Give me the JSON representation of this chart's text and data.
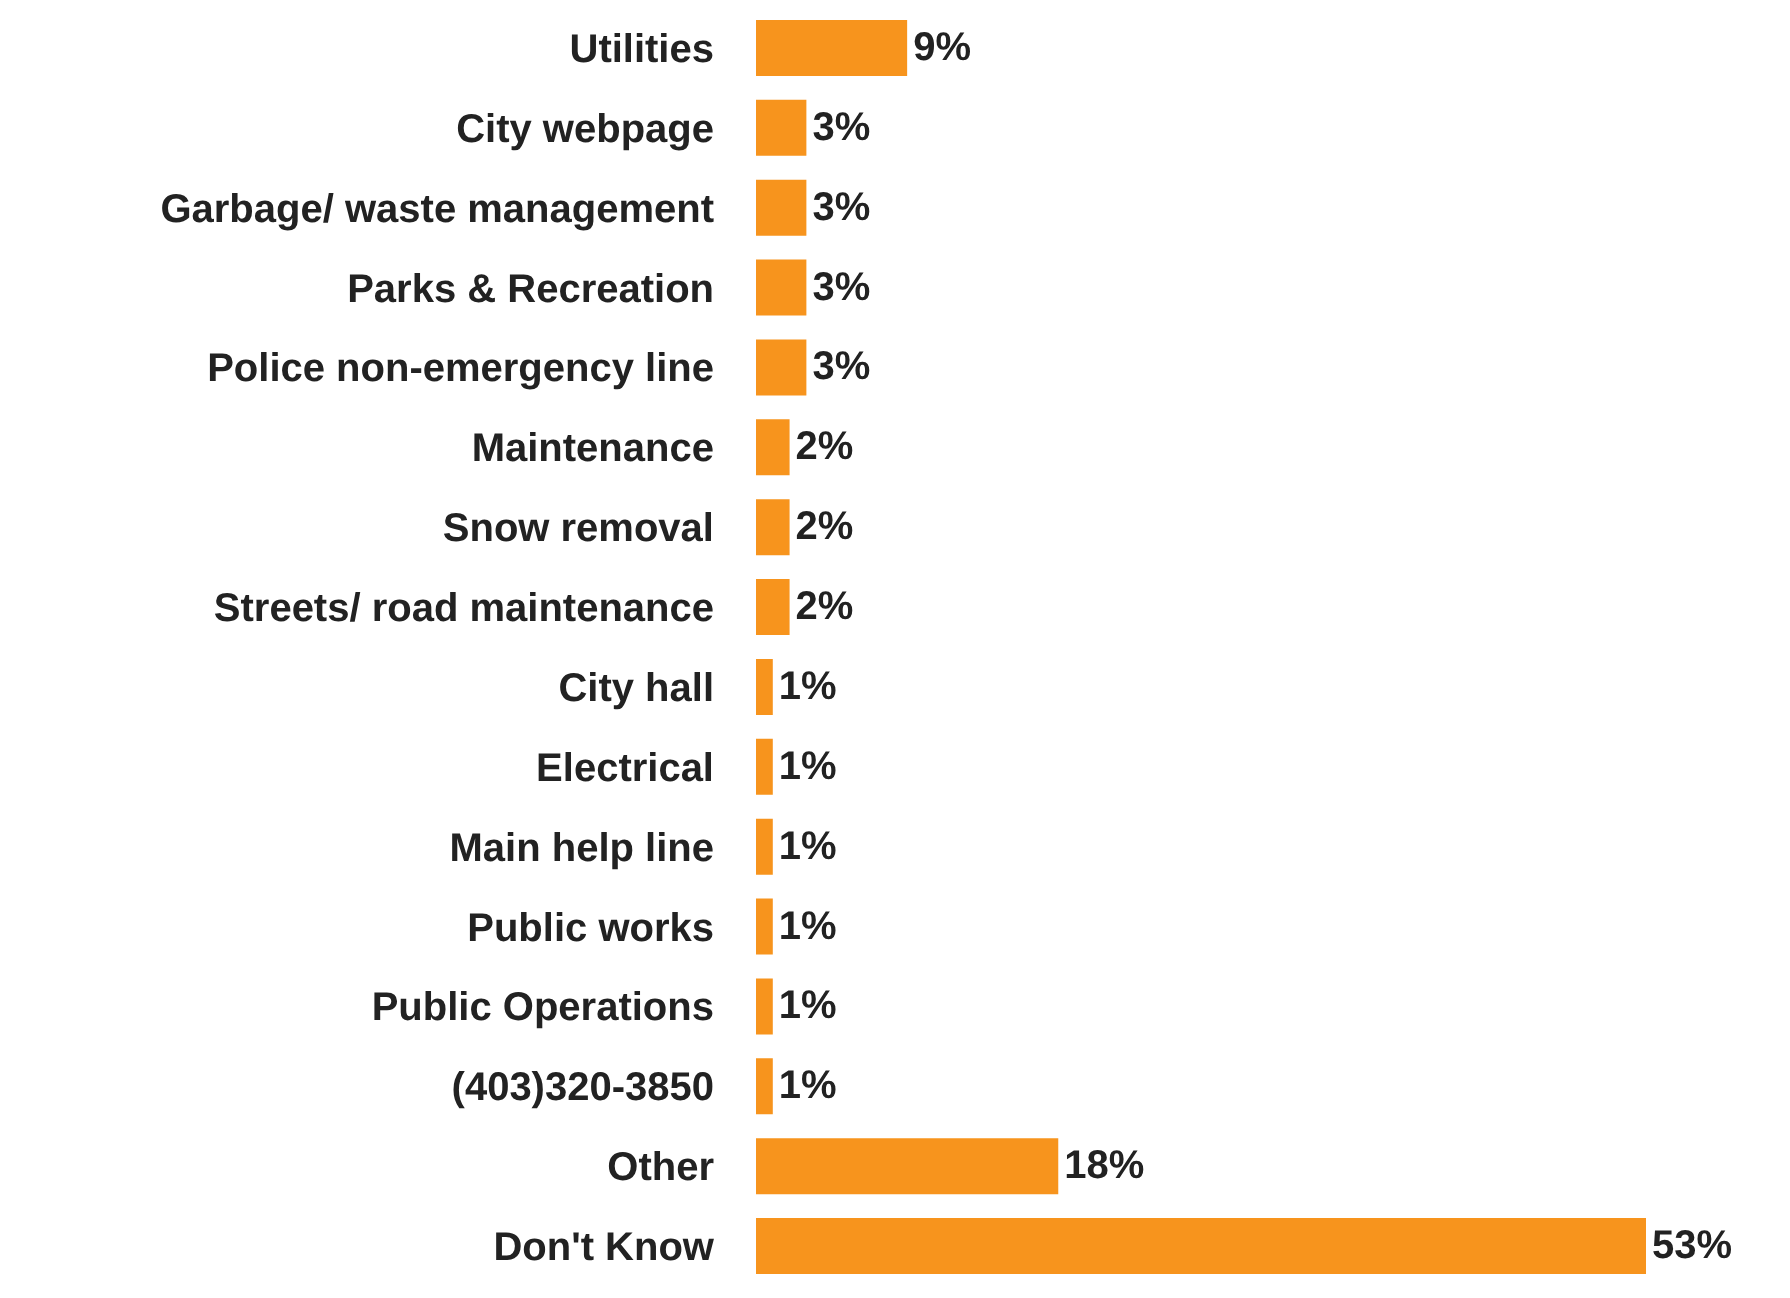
{
  "chart_data": {
    "type": "bar",
    "orientation": "horizontal",
    "tick_labels": "y",
    "categories": [
      "Utilities",
      "City webpage",
      "Garbage/ waste management",
      "Parks & Recreation",
      "Police non-emergency line",
      "Maintenance",
      "Snow removal",
      "Streets/ road maintenance",
      "City hall",
      "Electrical",
      "Main help line",
      "Public works",
      "Public Operations",
      "(403)320-3850",
      "Other",
      "Don't Know"
    ],
    "values": [
      9,
      3,
      3,
      3,
      3,
      2,
      2,
      2,
      1,
      1,
      1,
      1,
      1,
      1,
      18,
      53
    ],
    "value_labels": [
      "9%",
      "3%",
      "3%",
      "3%",
      "3%",
      "2%",
      "2%",
      "2%",
      "1%",
      "1%",
      "1%",
      "1%",
      "1%",
      "1%",
      "18%",
      "53%"
    ],
    "color": "#f7941d"
  }
}
